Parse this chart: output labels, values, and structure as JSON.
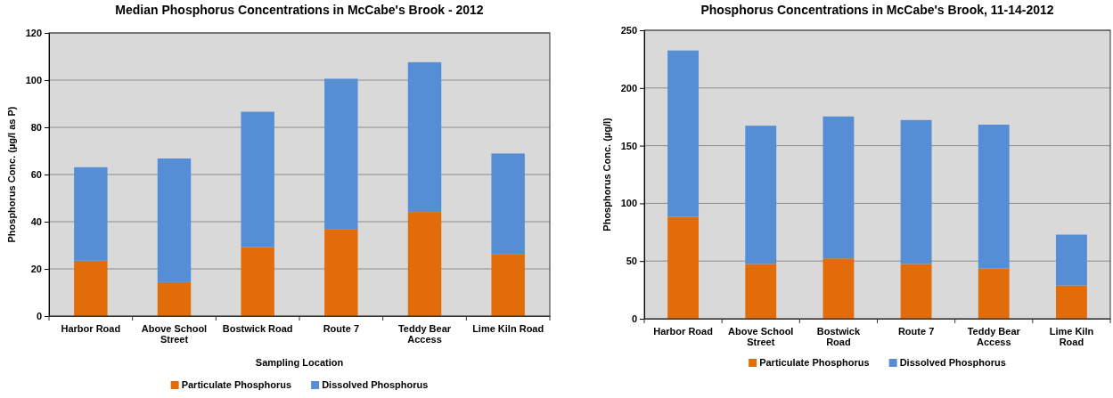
{
  "chart_data": [
    {
      "type": "bar",
      "title": "Median Phosphorus Concentrations in McCabe's Brook - 2012",
      "xlabel": "Sampling Location",
      "ylabel": "Phosphorus Conc. (µg/l as P)",
      "categories": [
        "Harbor Road",
        "Above School Street",
        "Bostwick Road",
        "Route 7",
        "Teddy Bear Access",
        "Lime Kiln Road"
      ],
      "series": [
        {
          "name": "Particulate Phosphorus",
          "color": "#e36c0a",
          "values": [
            23.5,
            14.4,
            29.2,
            36.9,
            44.1,
            26.1
          ]
        },
        {
          "name": "Dissolved Phosphorus",
          "color": "#558ed5",
          "values": [
            39.6,
            52.4,
            57.4,
            63.7,
            63.5,
            42.8
          ]
        }
      ],
      "stacked": true,
      "ylim": [
        0,
        120
      ],
      "yticks": [
        0,
        20,
        40,
        60,
        80,
        100,
        120
      ],
      "grid": "y",
      "legend": "bottom"
    },
    {
      "type": "bar",
      "title": "Phosphorus Concentrations in McCabe's Brook, 11-14-2012",
      "ylabel": "Phosphorus Conc. (µg/l)",
      "categories": [
        "Harbor Road",
        "Above School Street",
        "Bostwick Road",
        "Route 7",
        "Teddy Bear Access",
        "Lime Kiln Road"
      ],
      "series": [
        {
          "name": "Particulate Phosphorus",
          "color": "#e36c0a",
          "values": [
            88.4,
            47.5,
            52.3,
            47.5,
            43.5,
            28.9
          ]
        },
        {
          "name": "Dissolved Phosphorus",
          "color": "#558ed5",
          "values": [
            144.1,
            119.8,
            123,
            124.7,
            124.7,
            44
          ]
        }
      ],
      "stacked": true,
      "ylim": [
        0,
        250
      ],
      "yticks": [
        0,
        50,
        100,
        150,
        200,
        250
      ],
      "grid": "y",
      "legend": "bottom"
    }
  ]
}
